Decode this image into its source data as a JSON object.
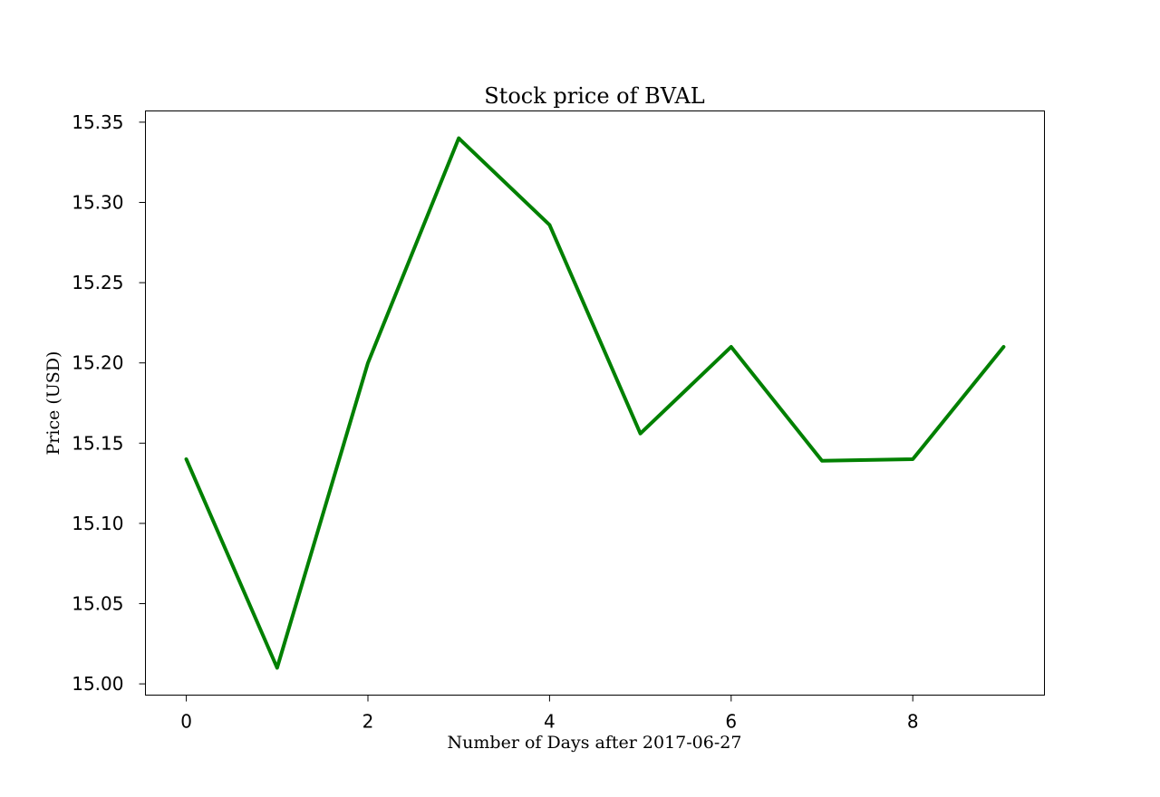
{
  "chart_data": {
    "type": "line",
    "title": "Stock price of BVAL",
    "xlabel": "Number of Days after 2017-06-27",
    "ylabel": "Price (USD)",
    "x": [
      0,
      1,
      2,
      3,
      4,
      5,
      6,
      7,
      8,
      9
    ],
    "series": [
      {
        "values": [
          15.14,
          15.01,
          15.2,
          15.34,
          15.286,
          15.156,
          15.21,
          15.139,
          15.14,
          15.21
        ],
        "color": "#008000"
      }
    ],
    "xlim": [
      -0.45,
      9.45
    ],
    "ylim": [
      14.993,
      15.357
    ],
    "xticks": [
      0,
      2,
      4,
      6,
      8
    ],
    "xtick_labels": [
      "0",
      "2",
      "4",
      "6",
      "8"
    ],
    "yticks": [
      15.0,
      15.05,
      15.1,
      15.15,
      15.2,
      15.25,
      15.3,
      15.35
    ],
    "ytick_labels": [
      "15.00",
      "15.05",
      "15.10",
      "15.15",
      "15.20",
      "15.25",
      "15.30",
      "15.35"
    ],
    "grid": false,
    "legend": "none"
  }
}
